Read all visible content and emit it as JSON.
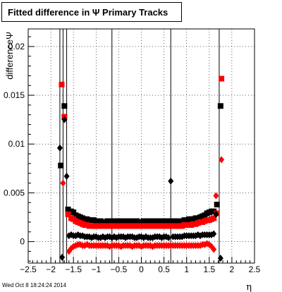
{
  "chart_data": {
    "type": "scatter",
    "title": "Fitted difference in  Ψ   Primary Tracks",
    "xlabel": "η",
    "ylabel": "differenceΨ",
    "xlim": [
      -2.5,
      2.5
    ],
    "ylim": [
      -0.0022,
      0.0218
    ],
    "xticks": [
      -2.5,
      -2,
      -1.5,
      -1,
      -0.5,
      0,
      0.5,
      1,
      1.5,
      2,
      2.5
    ],
    "xtick_labels": [
      "−2.5",
      "−2",
      "−1.5",
      "−1",
      "−0.5",
      "0",
      "0.5",
      "1",
      "1.5",
      "2",
      "2.5"
    ],
    "yticks": [
      0,
      0.005,
      0.01,
      0.015,
      0.02
    ],
    "ytick_labels": [
      "0",
      "0.005",
      "0.01",
      "0.015",
      "0.02"
    ],
    "grid": true,
    "colors": {
      "black": "#000000",
      "red": "#ff0000"
    },
    "series": [
      {
        "marker": "square",
        "color": "#000000",
        "points": [
          [
            -1.78,
            0.0078
          ],
          [
            -1.7,
            0.0139
          ],
          [
            -1.62,
            0.0033
          ],
          [
            -1.55,
            0.0031
          ],
          [
            -1.5,
            0.003
          ],
          [
            -1.45,
            0.0027
          ],
          [
            -1.4,
            0.0026
          ],
          [
            -1.35,
            0.0025
          ],
          [
            -1.3,
            0.0024
          ],
          [
            -1.25,
            0.0023
          ],
          [
            -1.2,
            0.0023
          ],
          [
            -1.15,
            0.0022
          ],
          [
            -1.1,
            0.0022
          ],
          [
            -1.05,
            0.0022
          ],
          [
            -1.0,
            0.0021
          ],
          [
            -0.95,
            0.0021
          ],
          [
            -0.9,
            0.0021
          ],
          [
            -0.85,
            0.002
          ],
          [
            -0.8,
            0.002
          ],
          [
            -0.75,
            0.0021
          ],
          [
            -0.7,
            0.0021
          ],
          [
            -0.65,
            0.0021
          ],
          [
            -0.6,
            0.0021
          ],
          [
            -0.55,
            0.0021
          ],
          [
            -0.5,
            0.0021
          ],
          [
            -0.45,
            0.0021
          ],
          [
            -0.4,
            0.0021
          ],
          [
            -0.35,
            0.0021
          ],
          [
            -0.3,
            0.0021
          ],
          [
            -0.25,
            0.002
          ],
          [
            -0.2,
            0.0021
          ],
          [
            -0.15,
            0.0021
          ],
          [
            -0.1,
            0.0021
          ],
          [
            -0.05,
            0.002
          ],
          [
            0.0,
            0.002
          ],
          [
            0.05,
            0.0021
          ],
          [
            0.1,
            0.0021
          ],
          [
            0.15,
            0.0021
          ],
          [
            0.2,
            0.0021
          ],
          [
            0.25,
            0.0021
          ],
          [
            0.3,
            0.0021
          ],
          [
            0.35,
            0.0021
          ],
          [
            0.4,
            0.0021
          ],
          [
            0.45,
            0.0021
          ],
          [
            0.5,
            0.0021
          ],
          [
            0.55,
            0.0021
          ],
          [
            0.6,
            0.0021
          ],
          [
            0.65,
            0.0021
          ],
          [
            0.7,
            0.0021
          ],
          [
            0.75,
            0.0021
          ],
          [
            0.8,
            0.0021
          ],
          [
            0.85,
            0.0021
          ],
          [
            0.9,
            0.0021
          ],
          [
            0.95,
            0.0022
          ],
          [
            1.0,
            0.0022
          ],
          [
            1.05,
            0.0023
          ],
          [
            1.1,
            0.0023
          ],
          [
            1.15,
            0.0023
          ],
          [
            1.2,
            0.0024
          ],
          [
            1.25,
            0.0024
          ],
          [
            1.3,
            0.0025
          ],
          [
            1.35,
            0.0026
          ],
          [
            1.4,
            0.0027
          ],
          [
            1.45,
            0.0029
          ],
          [
            1.5,
            0.003
          ],
          [
            1.55,
            0.0031
          ],
          [
            1.6,
            0.0031
          ],
          [
            1.67,
            0.0038
          ],
          [
            1.75,
            0.0139
          ]
        ]
      },
      {
        "marker": "square",
        "color": "#ff0000",
        "points": [
          [
            -1.76,
            0.0161
          ],
          [
            -1.7,
            0.0128
          ],
          [
            -1.62,
            0.0028
          ],
          [
            -1.55,
            0.0024
          ],
          [
            -1.5,
            0.0023
          ],
          [
            -1.45,
            0.0021
          ],
          [
            -1.4,
            0.002
          ],
          [
            -1.35,
            0.0019
          ],
          [
            -1.3,
            0.0018
          ],
          [
            -1.25,
            0.0017
          ],
          [
            -1.2,
            0.0017
          ],
          [
            -1.15,
            0.0016
          ],
          [
            -1.1,
            0.0016
          ],
          [
            -1.05,
            0.0016
          ],
          [
            -1.0,
            0.0016
          ],
          [
            -0.95,
            0.0016
          ],
          [
            -0.9,
            0.0016
          ],
          [
            -0.85,
            0.0016
          ],
          [
            -0.8,
            0.0016
          ],
          [
            -0.75,
            0.0016
          ],
          [
            -0.7,
            0.0016
          ],
          [
            -0.65,
            0.0016
          ],
          [
            -0.6,
            0.0016
          ],
          [
            -0.55,
            0.0016
          ],
          [
            -0.5,
            0.0016
          ],
          [
            -0.45,
            0.0016
          ],
          [
            -0.4,
            0.0016
          ],
          [
            -0.35,
            0.0016
          ],
          [
            -0.3,
            0.0016
          ],
          [
            -0.25,
            0.0016
          ],
          [
            -0.2,
            0.0016
          ],
          [
            -0.15,
            0.0016
          ],
          [
            -0.1,
            0.0016
          ],
          [
            -0.05,
            0.0016
          ],
          [
            0.0,
            0.0016
          ],
          [
            0.05,
            0.0016
          ],
          [
            0.1,
            0.0016
          ],
          [
            0.15,
            0.0016
          ],
          [
            0.2,
            0.0016
          ],
          [
            0.25,
            0.0016
          ],
          [
            0.3,
            0.0016
          ],
          [
            0.35,
            0.0016
          ],
          [
            0.4,
            0.0016
          ],
          [
            0.45,
            0.0016
          ],
          [
            0.5,
            0.0016
          ],
          [
            0.55,
            0.0016
          ],
          [
            0.6,
            0.0016
          ],
          [
            0.65,
            0.0016
          ],
          [
            0.7,
            0.0016
          ],
          [
            0.75,
            0.0016
          ],
          [
            0.8,
            0.0016
          ],
          [
            0.85,
            0.0016
          ],
          [
            0.9,
            0.0016
          ],
          [
            0.95,
            0.0017
          ],
          [
            1.0,
            0.0017
          ],
          [
            1.05,
            0.0017
          ],
          [
            1.1,
            0.0017
          ],
          [
            1.15,
            0.0018
          ],
          [
            1.2,
            0.0018
          ],
          [
            1.25,
            0.0019
          ],
          [
            1.3,
            0.002
          ],
          [
            1.35,
            0.002
          ],
          [
            1.4,
            0.0021
          ],
          [
            1.45,
            0.0022
          ],
          [
            1.5,
            0.0022
          ],
          [
            1.55,
            0.0023
          ],
          [
            1.6,
            0.0024
          ],
          [
            1.67,
            0.0029
          ],
          [
            1.77,
            0.0167
          ]
        ]
      },
      {
        "marker": "diamond",
        "color": "#000000",
        "points": [
          [
            -1.8,
            0.0096
          ],
          [
            -1.75,
            -0.0016
          ],
          [
            -1.7,
            0.0125
          ],
          [
            -1.65,
            0.0067
          ],
          [
            -1.6,
            0.0006
          ],
          [
            -1.55,
            0.0007
          ],
          [
            -1.5,
            0.0006
          ],
          [
            -1.45,
            0.0006
          ],
          [
            -1.4,
            0.0007
          ],
          [
            -1.35,
            0.0006
          ],
          [
            -1.3,
            0.0006
          ],
          [
            -1.25,
            0.0005
          ],
          [
            -1.2,
            0.0005
          ],
          [
            -1.15,
            0.0005
          ],
          [
            -1.1,
            0.0004
          ],
          [
            -1.05,
            0.0005
          ],
          [
            -1.0,
            0.0005
          ],
          [
            -0.95,
            0.0004
          ],
          [
            -0.9,
            0.0004
          ],
          [
            -0.85,
            0.0005
          ],
          [
            -0.8,
            0.0004
          ],
          [
            -0.75,
            0.0005
          ],
          [
            -0.7,
            0.0005
          ],
          [
            -0.65,
            0.0004
          ],
          [
            -0.6,
            0.0005
          ],
          [
            -0.55,
            0.0004
          ],
          [
            -0.5,
            0.0005
          ],
          [
            -0.45,
            0.0005
          ],
          [
            -0.4,
            0.0005
          ],
          [
            -0.35,
            0.0004
          ],
          [
            -0.3,
            0.0005
          ],
          [
            -0.25,
            0.0005
          ],
          [
            -0.2,
            0.0005
          ],
          [
            -0.15,
            0.0004
          ],
          [
            -0.1,
            0.0004
          ],
          [
            -0.05,
            0.0005
          ],
          [
            0.0,
            0.0005
          ],
          [
            0.05,
            0.0004
          ],
          [
            0.1,
            0.0005
          ],
          [
            0.15,
            0.0004
          ],
          [
            0.2,
            0.0004
          ],
          [
            0.25,
            0.0004
          ],
          [
            0.3,
            0.0005
          ],
          [
            0.35,
            0.0005
          ],
          [
            0.4,
            0.0005
          ],
          [
            0.45,
            0.0004
          ],
          [
            0.5,
            0.0005
          ],
          [
            0.55,
            0.0005
          ],
          [
            0.6,
            0.0004
          ],
          [
            0.65,
            0.0062
          ],
          [
            0.7,
            0.0005
          ],
          [
            0.75,
            0.0005
          ],
          [
            0.8,
            0.0005
          ],
          [
            0.85,
            0.0005
          ],
          [
            0.9,
            0.0005
          ],
          [
            0.95,
            0.0006
          ],
          [
            1.0,
            0.0006
          ],
          [
            1.05,
            0.0006
          ],
          [
            1.1,
            0.0006
          ],
          [
            1.15,
            0.0006
          ],
          [
            1.2,
            0.0006
          ],
          [
            1.25,
            0.0007
          ],
          [
            1.3,
            0.0006
          ],
          [
            1.35,
            0.0007
          ],
          [
            1.4,
            0.0007
          ],
          [
            1.45,
            0.0007
          ],
          [
            1.5,
            0.0007
          ],
          [
            1.55,
            0.0007
          ],
          [
            1.6,
            0.0008
          ],
          [
            1.65,
            0.0028
          ],
          [
            1.75,
            -0.0017
          ]
        ]
      },
      {
        "marker": "diamond",
        "color": "#ff0000",
        "points": [
          [
            -1.73,
            0.006
          ],
          [
            -1.6,
            -0.001
          ],
          [
            -1.55,
            -0.0007
          ],
          [
            -1.5,
            -0.0005
          ],
          [
            -1.45,
            -0.0004
          ],
          [
            -1.4,
            -0.0003
          ],
          [
            -1.35,
            -0.0003
          ],
          [
            -1.3,
            -0.0004
          ],
          [
            -1.25,
            -0.0004
          ],
          [
            -1.2,
            -0.0003
          ],
          [
            -1.15,
            -0.0004
          ],
          [
            -1.1,
            -0.0004
          ],
          [
            -1.05,
            -0.0004
          ],
          [
            -1.0,
            -0.0004
          ],
          [
            -0.95,
            -0.0004
          ],
          [
            -0.9,
            -0.0004
          ],
          [
            -0.85,
            -0.0004
          ],
          [
            -0.8,
            -0.0004
          ],
          [
            -0.75,
            -0.0004
          ],
          [
            -0.7,
            -0.0005
          ],
          [
            -0.65,
            -0.0004
          ],
          [
            -0.6,
            -0.0004
          ],
          [
            -0.55,
            -0.0004
          ],
          [
            -0.5,
            -0.0004
          ],
          [
            -0.45,
            -0.0005
          ],
          [
            -0.4,
            -0.0004
          ],
          [
            -0.35,
            -0.0004
          ],
          [
            -0.3,
            -0.0004
          ],
          [
            -0.25,
            -0.0004
          ],
          [
            -0.2,
            -0.0005
          ],
          [
            -0.15,
            -0.0004
          ],
          [
            -0.1,
            -0.0004
          ],
          [
            -0.05,
            -0.0004
          ],
          [
            0.0,
            -0.0005
          ],
          [
            0.05,
            -0.0004
          ],
          [
            0.1,
            -0.0004
          ],
          [
            0.15,
            -0.0004
          ],
          [
            0.2,
            -0.0004
          ],
          [
            0.25,
            -0.0005
          ],
          [
            0.3,
            -0.0004
          ],
          [
            0.35,
            -0.0004
          ],
          [
            0.4,
            -0.0004
          ],
          [
            0.45,
            -0.0004
          ],
          [
            0.5,
            -0.0004
          ],
          [
            0.55,
            -0.0004
          ],
          [
            0.6,
            -0.0004
          ],
          [
            0.65,
            -0.0004
          ],
          [
            0.7,
            -0.0004
          ],
          [
            0.75,
            -0.0004
          ],
          [
            0.8,
            -0.0004
          ],
          [
            0.85,
            -0.0004
          ],
          [
            0.9,
            -0.0004
          ],
          [
            0.95,
            -0.0004
          ],
          [
            1.0,
            -0.0004
          ],
          [
            1.05,
            -0.0004
          ],
          [
            1.1,
            -0.0004
          ],
          [
            1.15,
            -0.0004
          ],
          [
            1.2,
            -0.0004
          ],
          [
            1.25,
            -0.0004
          ],
          [
            1.3,
            -0.0004
          ],
          [
            1.35,
            -0.0003
          ],
          [
            1.4,
            -0.0003
          ],
          [
            1.45,
            -0.0002
          ],
          [
            1.5,
            -0.0003
          ],
          [
            1.55,
            -0.0005
          ],
          [
            1.6,
            -0.0008
          ],
          [
            1.65,
            0.0047
          ],
          [
            1.77,
            0.0084
          ]
        ]
      }
    ],
    "vertical_lines_x": [
      -1.8,
      -1.73,
      -1.65,
      -0.65,
      0.65,
      1.72
    ]
  },
  "footer": {
    "timestamp": "Wed Oct  8 18:24:24 2014"
  }
}
